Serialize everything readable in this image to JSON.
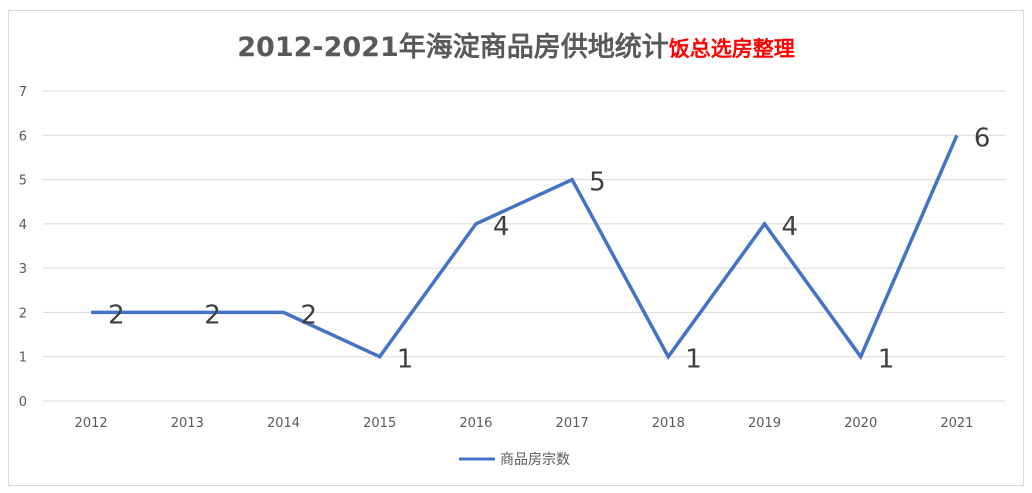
{
  "chart_data": {
    "type": "line",
    "title": "2012-2021年海淀商品房供地统计",
    "subtitle": "饭总选房整理",
    "categories": [
      "2012",
      "2013",
      "2014",
      "2015",
      "2016",
      "2017",
      "2018",
      "2019",
      "2020",
      "2021"
    ],
    "series": [
      {
        "name": "商品房宗数",
        "color": "#4472c4",
        "values": [
          2,
          2,
          2,
          1,
          4,
          5,
          1,
          4,
          1,
          6
        ]
      }
    ],
    "ylim": [
      0,
      7
    ],
    "yticks": [
      "0",
      "1",
      "2",
      "3",
      "4",
      "5",
      "6",
      "7"
    ],
    "grid": true,
    "legend": "bottom",
    "data_labels": true
  }
}
